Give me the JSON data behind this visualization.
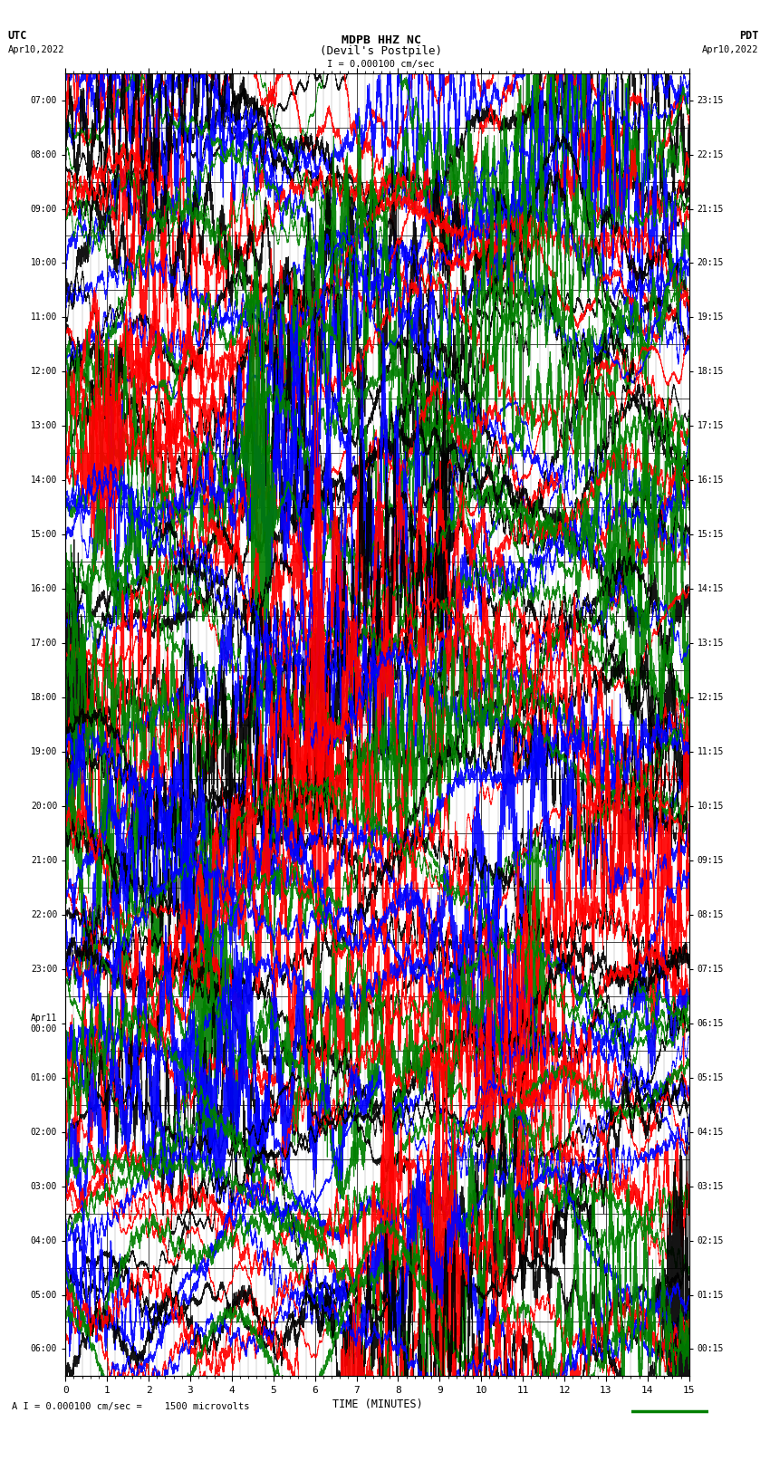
{
  "title_line1": "MDPB HHZ NC",
  "title_line2": "(Devil's Postpile)",
  "scale_label": "I = 0.000100 cm/sec",
  "bottom_label": "A I = 0.000100 cm/sec =    1500 microvolts",
  "xlabel": "TIME (MINUTES)",
  "utc_label": "UTC",
  "utc_date": "Apr10,2022",
  "pdt_label": "PDT",
  "pdt_date": "Apr10,2022",
  "left_times": [
    "07:00",
    "08:00",
    "09:00",
    "10:00",
    "11:00",
    "12:00",
    "13:00",
    "14:00",
    "15:00",
    "16:00",
    "17:00",
    "18:00",
    "19:00",
    "20:00",
    "21:00",
    "22:00",
    "23:00",
    "Apr11\n00:00",
    "01:00",
    "02:00",
    "03:00",
    "04:00",
    "05:00",
    "06:00"
  ],
  "right_times": [
    "00:15",
    "01:15",
    "02:15",
    "03:15",
    "04:15",
    "05:15",
    "06:15",
    "07:15",
    "08:15",
    "09:15",
    "10:15",
    "11:15",
    "12:15",
    "13:15",
    "14:15",
    "15:15",
    "16:15",
    "17:15",
    "18:15",
    "19:15",
    "20:15",
    "21:15",
    "22:15",
    "23:15"
  ],
  "num_rows": 24,
  "x_min": 0,
  "x_max": 15,
  "colors": [
    "black",
    "red",
    "blue",
    "green"
  ],
  "bg_color": "#ffffff",
  "grid_major_color": "#000000",
  "grid_minor_color": "#888888",
  "line_width": 0.6,
  "seed": 42
}
